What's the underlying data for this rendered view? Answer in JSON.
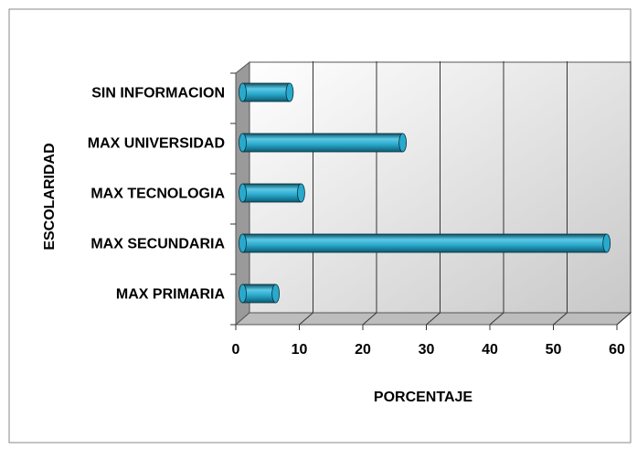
{
  "chart_data": {
    "type": "bar",
    "orientation": "horizontal",
    "x_label": "PORCENTAJE",
    "y_label": "ESCOLARIDAD",
    "categories": [
      "MAX  PRIMARIA",
      "MAX  SECUNDARIA",
      "MAX  TECNOLOGIA",
      "MAX  UNIVERSIDAD",
      "SIN INFORMACION"
    ],
    "values": [
      5.2,
      57.3,
      9.2,
      25.2,
      7.4
    ],
    "color": "#29a9cc",
    "xlim": [
      0,
      60
    ],
    "xticks": [
      0,
      10,
      20,
      30,
      40,
      50,
      60
    ],
    "grid": true
  }
}
